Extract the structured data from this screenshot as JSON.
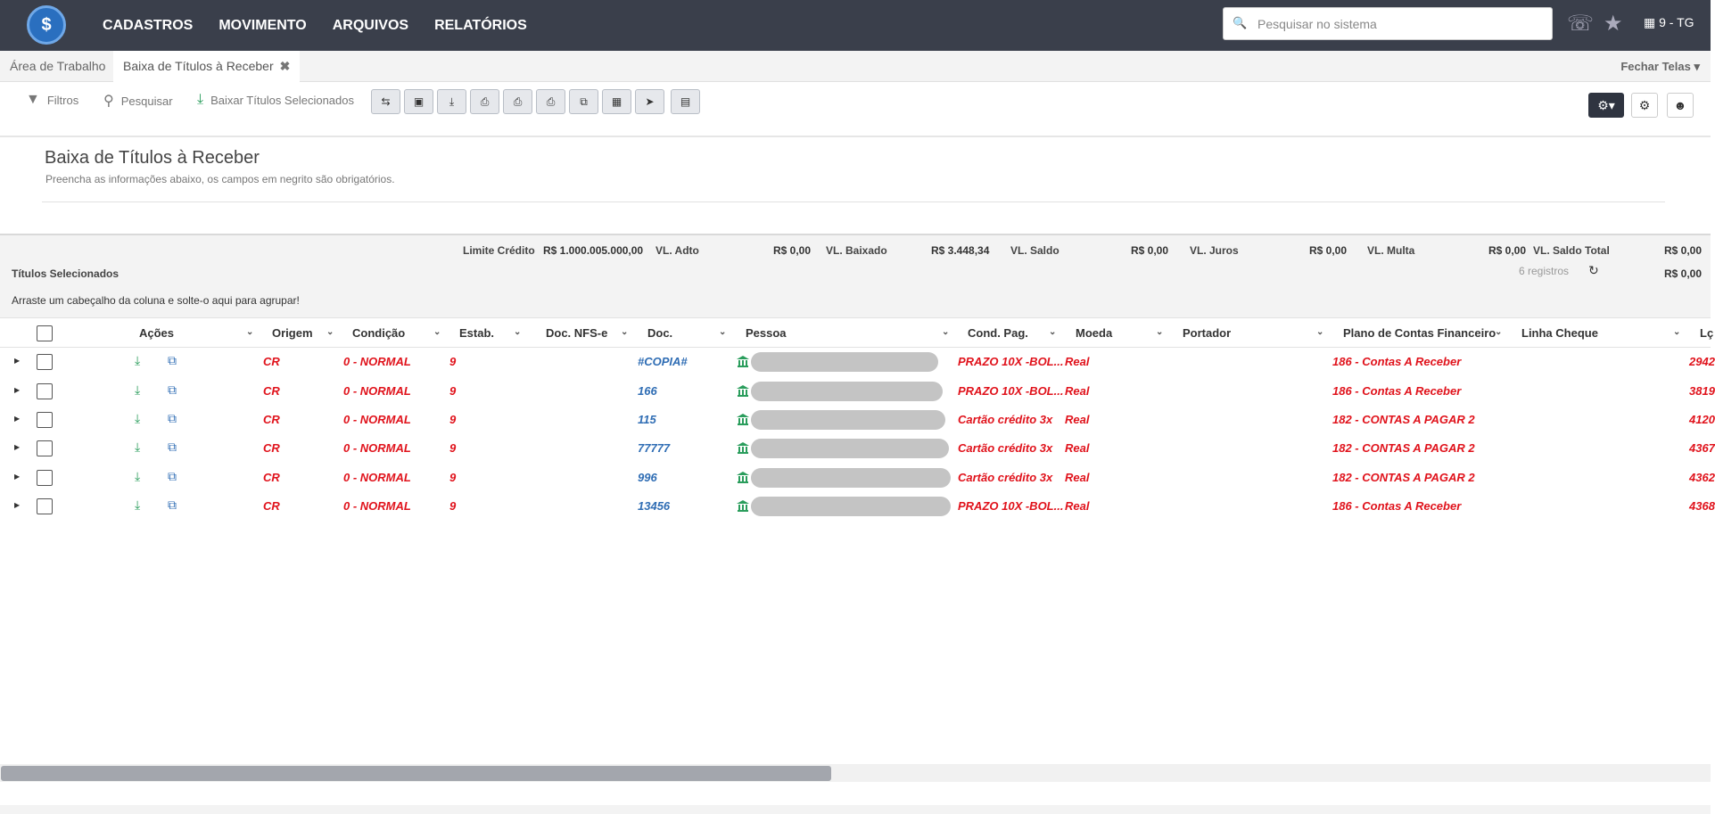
{
  "brand": {
    "logo_glyph": "$"
  },
  "topnav": {
    "items": [
      "CADASTROS",
      "MOVIMENTO",
      "ARQUIVOS",
      "RELATÓRIOS"
    ]
  },
  "search": {
    "placeholder": "Pesquisar no sistema"
  },
  "user": {
    "label": "9 - TG"
  },
  "tabs": [
    {
      "label": "Área de Trabalho",
      "active": false
    },
    {
      "label": "Baixa de Títulos à Receber",
      "active": true,
      "close_glyph": "✖"
    }
  ],
  "fechar_telas": "Fechar Telas ▾",
  "toolbar": {
    "filtros": "Filtros",
    "pesquisar": "Pesquisar",
    "baixar": "Baixar Títulos Selecionados"
  },
  "form": {
    "title": "Baixa de Títulos à Receber",
    "subtitle": "Preencha as informações abaixo, os campos em negrito são obrigatórios."
  },
  "summary": {
    "limite_label": "Limite Crédito",
    "limite_value": "R$ 1.000.005.000,00",
    "adto_label": "VL. Adto",
    "adto_value": "R$ 0,00",
    "baixado_label": "VL. Baixado",
    "baixado_value": "R$ 3.448,34",
    "saldo_label": "VL. Saldo",
    "saldo_value": "R$ 0,00",
    "juros_label": "VL. Juros",
    "juros_value": "R$ 0,00",
    "multa_label": "VL. Multa",
    "multa_value": "R$ 0,00",
    "saldo_total_label": "VL. Saldo Total",
    "saldo_total_value": "R$ 0,00",
    "titulos_label": "Títulos Selecionados",
    "registros": "6 registros",
    "second_total": "R$ 0,00"
  },
  "group_hint": "Arraste um cabeçalho da coluna e solte-o aqui para agrupar!",
  "columns": {
    "acoes": "Ações",
    "origem": "Origem",
    "condicao": "Condição",
    "estab": "Estab.",
    "nfse": "Doc. NFS-e",
    "doc": "Doc.",
    "pessoa": "Pessoa",
    "cond_pag": "Cond. Pag.",
    "moeda": "Moeda",
    "portador": "Portador",
    "plano": "Plano de Contas Financeiro",
    "linha": "Linha Cheque",
    "last": "Lç"
  },
  "rows": [
    {
      "origem": "CR",
      "condicao": "0 - NORMAL",
      "estab": "9",
      "doc": "#COPIA#",
      "cond_pag": "PRAZO 10X -BOL...",
      "moeda": "Real",
      "plano": "186 - Contas A Receber",
      "last": "2942"
    },
    {
      "origem": "CR",
      "condicao": "0 - NORMAL",
      "estab": "9",
      "doc": "166",
      "cond_pag": "PRAZO 10X -BOL...",
      "moeda": "Real",
      "plano": "186 - Contas A Receber",
      "last": "3819"
    },
    {
      "origem": "CR",
      "condicao": "0 - NORMAL",
      "estab": "9",
      "doc": "115",
      "cond_pag": "Cartão crédito 3x",
      "moeda": "Real",
      "plano": "182 - CONTAS A PAGAR 2",
      "last": "4120"
    },
    {
      "origem": "CR",
      "condicao": "0 - NORMAL",
      "estab": "9",
      "doc": "77777",
      "cond_pag": "Cartão crédito 3x",
      "moeda": "Real",
      "plano": "182 - CONTAS A PAGAR 2",
      "last": "4367"
    },
    {
      "origem": "CR",
      "condicao": "0 - NORMAL",
      "estab": "9",
      "doc": "996",
      "cond_pag": "Cartão crédito 3x",
      "moeda": "Real",
      "plano": "182 - CONTAS A PAGAR 2",
      "last": "4362"
    },
    {
      "origem": "CR",
      "condicao": "0 - NORMAL",
      "estab": "9",
      "doc": "13456",
      "cond_pag": "PRAZO 10X -BOL...",
      "moeda": "Real",
      "plano": "186 - Contas A Receber",
      "last": "4368"
    }
  ],
  "colors": {
    "topbar": "#3a3f4b",
    "accent_red": "#e0121b",
    "accent_blue": "#2f6db4",
    "icon_green": "#2a9d5c"
  }
}
